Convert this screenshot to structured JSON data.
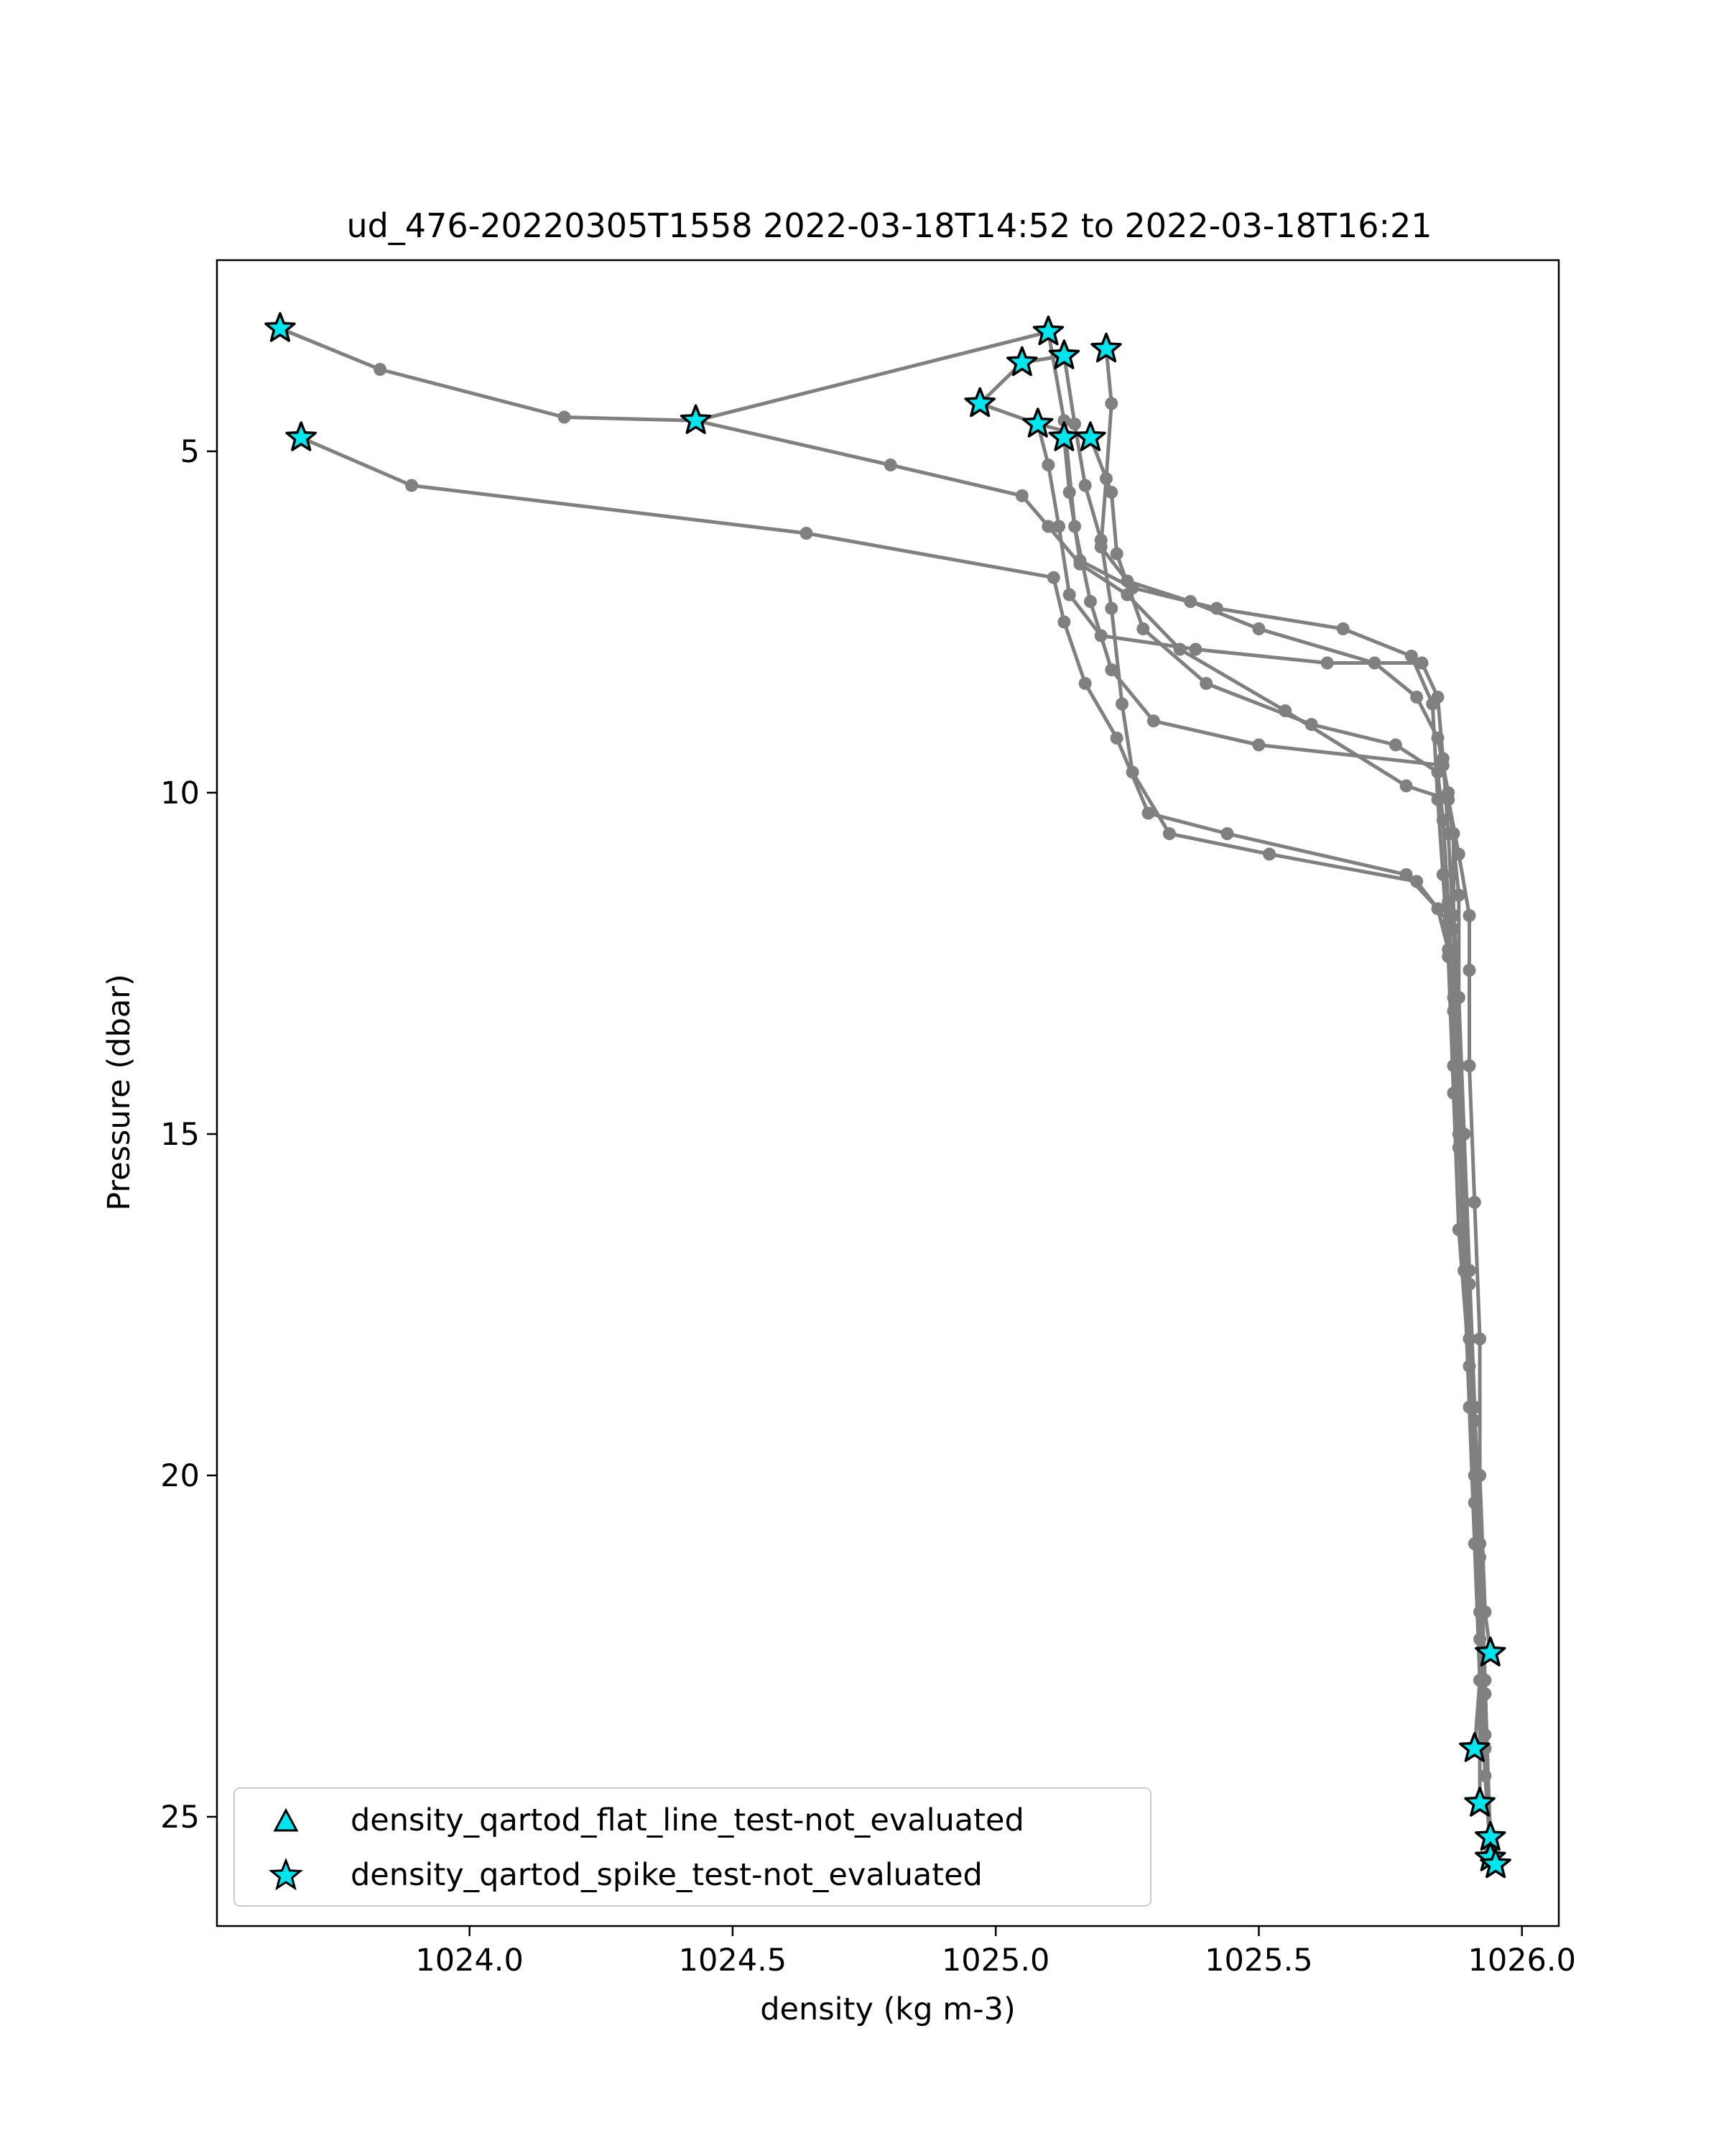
{
  "chart_data": {
    "type": "scatter",
    "title": "ud_476-20220305T1558 2022-03-18T14:52 to 2022-03-18T16:21",
    "xlabel": "density (kg m-3)",
    "ylabel": "Pressure (dbar)",
    "xlim": [
      1023.52,
      1026.07
    ],
    "ylim": [
      26.6,
      2.2
    ],
    "y_inverted": true,
    "xticks": [
      1024.0,
      1024.5,
      1025.0,
      1025.5,
      1026.0
    ],
    "xtick_labels": [
      "1024.0",
      "1024.5",
      "1025.0",
      "1025.5",
      "1026.0"
    ],
    "yticks": [
      5,
      10,
      15,
      20,
      25
    ],
    "ytick_labels": [
      "5",
      "10",
      "15",
      "20",
      "25"
    ],
    "line_color": "#808080",
    "marker_color": "#00e5ee",
    "grid": false,
    "legend_position": "lower-left",
    "legend": [
      {
        "label": "density_qartod_flat_line_test-not_evaluated",
        "marker": "triangle"
      },
      {
        "label": "density_qartod_spike_test-not_evaluated",
        "marker": "star"
      }
    ],
    "profiles": [
      [
        [
          1023.64,
          3.2
        ],
        [
          1023.83,
          3.8
        ],
        [
          1024.18,
          4.5
        ],
        [
          1024.43,
          4.55
        ],
        [
          1024.8,
          5.2
        ],
        [
          1025.05,
          5.65
        ],
        [
          1025.1,
          6.1
        ],
        [
          1025.16,
          6.65
        ],
        [
          1025.25,
          7.1
        ],
        [
          1025.35,
          7.9
        ],
        [
          1025.55,
          8.8
        ],
        [
          1025.78,
          9.9
        ],
        [
          1025.86,
          10.1
        ],
        [
          1025.88,
          10.9
        ],
        [
          1025.9,
          11.8
        ],
        [
          1025.9,
          12.6
        ],
        [
          1025.9,
          14
        ],
        [
          1025.91,
          16
        ],
        [
          1025.92,
          18
        ],
        [
          1025.92,
          20
        ],
        [
          1025.93,
          22
        ],
        [
          1025.94,
          22.6
        ]
      ],
      [
        [
          1024.43,
          4.55
        ],
        [
          1025.1,
          3.25
        ],
        [
          1025.13,
          4.55
        ],
        [
          1025.15,
          6.1
        ],
        [
          1025.18,
          7.2
        ],
        [
          1025.22,
          8.2
        ],
        [
          1025.3,
          8.95
        ],
        [
          1025.5,
          9.3
        ],
        [
          1025.85,
          9.6
        ],
        [
          1025.87,
          10.6
        ],
        [
          1025.87,
          11.8
        ],
        [
          1025.88,
          13
        ],
        [
          1025.89,
          15
        ],
        [
          1025.9,
          17
        ],
        [
          1025.91,
          19
        ],
        [
          1025.92,
          21
        ],
        [
          1025.92,
          23
        ],
        [
          1025.91,
          24
        ]
      ],
      [
        [
          1024.97,
          4.3
        ],
        [
          1025.05,
          3.7
        ],
        [
          1025.13,
          3.6
        ],
        [
          1025.15,
          4.6
        ],
        [
          1025.17,
          5.5
        ],
        [
          1025.2,
          6.3
        ],
        [
          1025.22,
          7.3
        ],
        [
          1025.24,
          8.7
        ],
        [
          1025.26,
          9.7
        ],
        [
          1025.33,
          10.6
        ],
        [
          1025.52,
          10.9
        ],
        [
          1025.8,
          11.3
        ],
        [
          1025.86,
          11.9
        ],
        [
          1025.87,
          13
        ],
        [
          1025.88,
          15
        ],
        [
          1025.89,
          17
        ],
        [
          1025.9,
          19
        ],
        [
          1025.91,
          21
        ],
        [
          1025.92,
          23
        ],
        [
          1025.92,
          24.8
        ]
      ],
      [
        [
          1024.97,
          4.3
        ],
        [
          1025.08,
          4.6
        ],
        [
          1025.18,
          4.8
        ],
        [
          1025.22,
          5.6
        ],
        [
          1025.23,
          6.5
        ],
        [
          1025.28,
          7.6
        ],
        [
          1025.4,
          8.4
        ],
        [
          1025.6,
          9.0
        ],
        [
          1025.76,
          9.3
        ],
        [
          1025.84,
          9.7
        ],
        [
          1025.85,
          10.4
        ],
        [
          1025.86,
          11.6
        ],
        [
          1025.87,
          13.2
        ],
        [
          1025.88,
          15.2
        ],
        [
          1025.9,
          17.2
        ],
        [
          1025.91,
          19.2
        ],
        [
          1025.92,
          21.2
        ],
        [
          1025.93,
          23.2
        ],
        [
          1025.94,
          25.3
        ]
      ],
      [
        [
          1023.68,
          4.8
        ],
        [
          1023.89,
          5.5
        ],
        [
          1024.64,
          6.2
        ],
        [
          1025.11,
          6.85
        ],
        [
          1025.13,
          7.5
        ],
        [
          1025.17,
          8.4
        ],
        [
          1025.23,
          9.2
        ],
        [
          1025.29,
          10.3
        ],
        [
          1025.44,
          10.6
        ],
        [
          1025.78,
          11.2
        ],
        [
          1025.84,
          11.7
        ],
        [
          1025.86,
          12.3
        ],
        [
          1025.87,
          14
        ],
        [
          1025.89,
          16
        ],
        [
          1025.9,
          18
        ],
        [
          1025.91,
          20
        ],
        [
          1025.92,
          22
        ],
        [
          1025.93,
          24
        ],
        [
          1025.94,
          25.4
        ]
      ],
      [
        [
          1025.21,
          3.5
        ],
        [
          1025.22,
          4.3
        ],
        [
          1025.21,
          5.4
        ],
        [
          1025.2,
          6.4
        ],
        [
          1025.25,
          6.9
        ],
        [
          1025.37,
          7.2
        ],
        [
          1025.5,
          7.6
        ],
        [
          1025.72,
          8.1
        ],
        [
          1025.8,
          8.6
        ],
        [
          1025.84,
          9.2
        ],
        [
          1025.86,
          10.0
        ],
        [
          1025.88,
          11.5
        ],
        [
          1025.88,
          13
        ],
        [
          1025.89,
          15
        ],
        [
          1025.9,
          17
        ],
        [
          1025.91,
          19
        ],
        [
          1025.92,
          21
        ],
        [
          1025.93,
          23
        ],
        [
          1025.94,
          25.6
        ],
        [
          1025.95,
          25.7
        ]
      ],
      [
        [
          1025.08,
          4.6
        ],
        [
          1025.1,
          5.2
        ],
        [
          1025.12,
          6.1
        ],
        [
          1025.14,
          7.1
        ],
        [
          1025.2,
          7.7
        ],
        [
          1025.38,
          7.9
        ],
        [
          1025.63,
          8.1
        ],
        [
          1025.81,
          8.1
        ],
        [
          1025.84,
          8.6
        ],
        [
          1025.85,
          9.5
        ],
        [
          1025.86,
          10.6
        ],
        [
          1025.87,
          12
        ],
        [
          1025.88,
          14
        ],
        [
          1025.89,
          16
        ],
        [
          1025.9,
          18
        ],
        [
          1025.91,
          20
        ],
        [
          1025.92,
          22
        ],
        [
          1025.93,
          23.8
        ]
      ],
      [
        [
          1025.13,
          4.8
        ],
        [
          1025.14,
          5.6
        ],
        [
          1025.16,
          6.6
        ],
        [
          1025.26,
          7.0
        ],
        [
          1025.42,
          7.3
        ],
        [
          1025.66,
          7.6
        ],
        [
          1025.79,
          8.0
        ],
        [
          1025.83,
          8.7
        ],
        [
          1025.84,
          10.1
        ],
        [
          1025.85,
          11.2
        ],
        [
          1025.86,
          12.4
        ],
        [
          1025.87,
          14.4
        ],
        [
          1025.88,
          16.4
        ],
        [
          1025.9,
          18.4
        ],
        [
          1025.91,
          20.4
        ],
        [
          1025.92,
          22.4
        ],
        [
          1025.93,
          24.4
        ],
        [
          1025.94,
          25.5
        ]
      ]
    ],
    "spike_markers": [
      [
        1023.64,
        3.2
      ],
      [
        1023.68,
        4.8
      ],
      [
        1024.43,
        4.55
      ],
      [
        1024.97,
        4.3
      ],
      [
        1025.05,
        3.7
      ],
      [
        1025.1,
        3.25
      ],
      [
        1025.13,
        3.6
      ],
      [
        1025.08,
        4.6
      ],
      [
        1025.13,
        4.8
      ],
      [
        1025.18,
        4.8
      ],
      [
        1025.21,
        3.5
      ],
      [
        1025.94,
        22.6
      ],
      [
        1025.91,
        24.0
      ],
      [
        1025.92,
        24.8
      ],
      [
        1025.94,
        25.3
      ],
      [
        1025.94,
        25.6
      ],
      [
        1025.95,
        25.7
      ]
    ]
  }
}
